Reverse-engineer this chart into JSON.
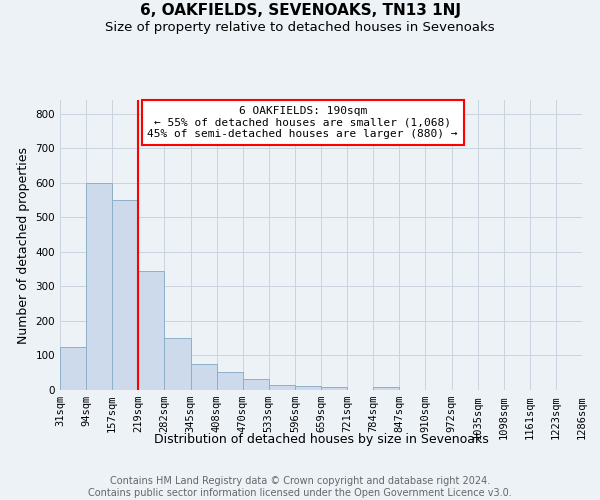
{
  "title": "6, OAKFIELDS, SEVENOAKS, TN13 1NJ",
  "subtitle": "Size of property relative to detached houses in Sevenoaks",
  "xlabel": "Distribution of detached houses by size in Sevenoaks",
  "ylabel": "Number of detached properties",
  "footer_line1": "Contains HM Land Registry data © Crown copyright and database right 2024.",
  "footer_line2": "Contains public sector information licensed under the Open Government Licence v3.0.",
  "bins": [
    "31sqm",
    "94sqm",
    "157sqm",
    "219sqm",
    "282sqm",
    "345sqm",
    "408sqm",
    "470sqm",
    "533sqm",
    "596sqm",
    "659sqm",
    "721sqm",
    "784sqm",
    "847sqm",
    "910sqm",
    "972sqm",
    "1035sqm",
    "1098sqm",
    "1161sqm",
    "1223sqm",
    "1286sqm"
  ],
  "values": [
    125,
    600,
    550,
    345,
    150,
    75,
    52,
    32,
    15,
    12,
    8,
    0,
    8,
    0,
    0,
    0,
    0,
    0,
    0,
    0
  ],
  "bar_color": "#ccdaeb",
  "bar_edgecolor": "#8fafc8",
  "red_line_x": 3.0,
  "annotation_text": "6 OAKFIELDS: 190sqm\n← 55% of detached houses are smaller (1,068)\n45% of semi-detached houses are larger (880) →",
  "annotation_box_color": "white",
  "annotation_box_edgecolor": "red",
  "ylim": [
    0,
    840
  ],
  "yticks": [
    0,
    100,
    200,
    300,
    400,
    500,
    600,
    700,
    800
  ],
  "grid_color": "#c8d4de",
  "background_color": "#edf2f7",
  "title_fontsize": 11,
  "subtitle_fontsize": 9.5,
  "axis_label_fontsize": 9,
  "tick_fontsize": 7.5,
  "annotation_fontsize": 8,
  "footer_fontsize": 7
}
